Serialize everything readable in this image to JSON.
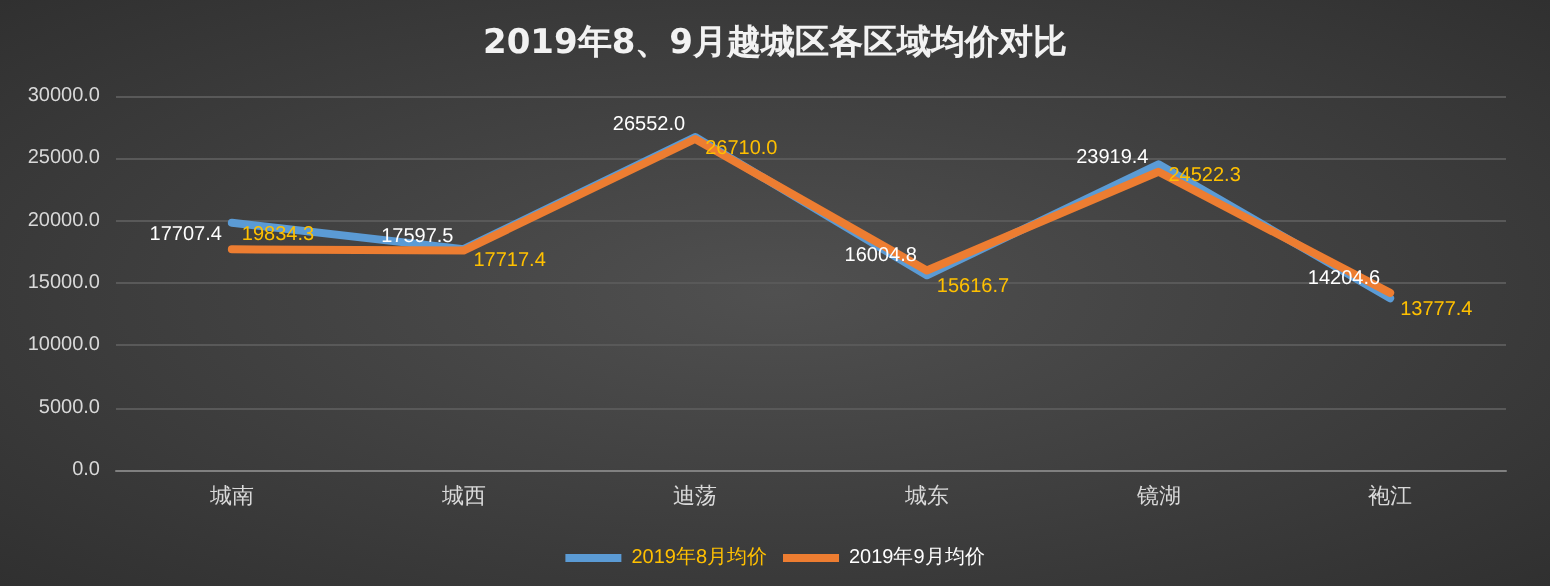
{
  "chart_data": {
    "type": "line",
    "title": "2019年8、9月越城区各区域均价对比",
    "categories": [
      "城南",
      "城西",
      "迪荡",
      "城东",
      "镜湖",
      "袍江"
    ],
    "series": [
      {
        "name": "2019年8月均价",
        "color": "#5b9bd5",
        "values": [
          19834.3,
          17717.4,
          26710,
          15616.7,
          24522.3,
          13777.4
        ],
        "value_labels": [
          "19834.3",
          "17717.4",
          "26710.0",
          "15616.7",
          "24522.3",
          "13777.4"
        ]
      },
      {
        "name": "2019年9月均价",
        "color": "#ed7d31",
        "values": [
          17707.4,
          17597.5,
          26552,
          16004.8,
          23919.4,
          14204.6
        ],
        "value_labels": [
          "17707.4",
          "17597.5",
          "26552.0",
          "16004.8",
          "23919.4",
          "14204.6"
        ]
      }
    ],
    "ylim": [
      0,
      30000
    ],
    "yticks": [
      {
        "value": 0,
        "label": "0.0"
      },
      {
        "value": 5000,
        "label": "5000.0"
      },
      {
        "value": 10000,
        "label": "10000.0"
      },
      {
        "value": 15000,
        "label": "15000.0"
      },
      {
        "value": 20000,
        "label": "20000.0"
      },
      {
        "value": 25000,
        "label": "25000.0"
      },
      {
        "value": 30000,
        "label": "30000.0"
      }
    ],
    "grid": "y",
    "legend": "bottom",
    "marker": "none",
    "line_style": "solid"
  }
}
